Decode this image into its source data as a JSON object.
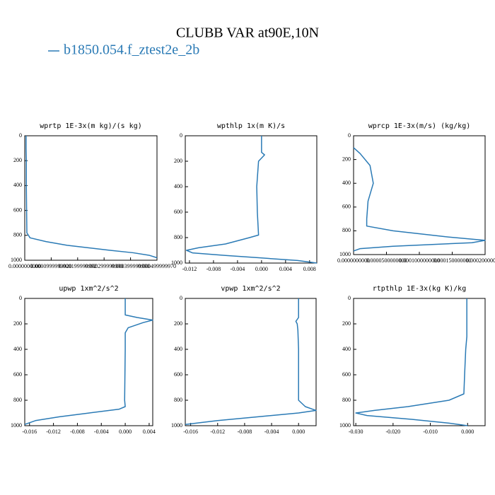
{
  "title": "CLUBB VAR at90E,10N",
  "legend": {
    "name": "b1850.054.f_ztest2e_2b",
    "color": "#2a7ab5"
  },
  "chart_data": [
    {
      "type": "line",
      "title": "wprtp  1E-3x(m kg)/(s kg)",
      "y": [
        0,
        100,
        200,
        400,
        600,
        780,
        820,
        850,
        880,
        900,
        920,
        940,
        960,
        980
      ],
      "series": [
        {
          "color": "#2a7ab5",
          "values": [
            5e-06,
            5e-06,
            6e-06,
            6e-06,
            7e-06,
            8e-06,
            2e-05,
            8e-05,
            0.00016,
            0.00024,
            0.00032,
            0.00041,
            0.00047,
            0.0005
          ]
        }
      ],
      "xlim": [
        0,
        0.0005
      ],
      "xticks": [
        {
          "value": 0,
          "label": "0.0000000000"
        },
        {
          "value": 0.0001,
          "label": "0.0000999999920"
        },
        {
          "value": 0.0002,
          "label": "0.000199999992"
        },
        {
          "value": 0.0003,
          "label": "0.000299999990"
        },
        {
          "value": 0.0004,
          "label": "0.000399999990"
        },
        {
          "value": 0.0005,
          "label": "0.000499999970"
        }
      ],
      "ylim": [
        1000,
        0
      ],
      "yticks": [
        0,
        200,
        400,
        600,
        800,
        1000
      ]
    },
    {
      "type": "line",
      "title": "wpthlp  1x(m K)/s",
      "y": [
        0,
        130,
        150,
        200,
        400,
        600,
        780,
        800,
        850,
        880,
        900,
        920,
        940,
        960,
        980,
        1000
      ],
      "series": [
        {
          "color": "#2a7ab5",
          "values": [
            0,
            0,
            0.0005,
            -0.0005,
            -0.0008,
            -0.0007,
            -0.0005,
            -0.002,
            -0.006,
            -0.0105,
            -0.0125,
            -0.0115,
            -0.006,
            0,
            0.006,
            0.0092
          ]
        }
      ],
      "xlim": [
        -0.0127,
        0.0092
      ],
      "xticks": [
        -0.012,
        -0.008,
        -0.004,
        {
          "value": 0,
          "label": "0.000"
        },
        0.004,
        0.008
      ],
      "ylim": [
        1000,
        0
      ],
      "yticks": [
        0,
        200,
        400,
        600,
        800,
        1000
      ]
    },
    {
      "type": "line",
      "title": "wprcp  1E-3x(m/s) (kg/kg)",
      "y": [
        100,
        150,
        250,
        400,
        550,
        700,
        760,
        800,
        850,
        880,
        900,
        930,
        950,
        970
      ],
      "series": [
        {
          "color": "#2a7ab5",
          "values": [
            0,
            1e-05,
            2.5e-05,
            3e-05,
            2.2e-05,
            2e-05,
            2e-05,
            6e-05,
            0.00014,
            0.0002,
            0.00018,
            6e-05,
            1e-05,
            0
          ]
        }
      ],
      "xlim": [
        0,
        0.0002
      ],
      "xticks": [
        {
          "value": 0,
          "label": "0.0000000000"
        },
        {
          "value": 5e-05,
          "label": "0.0000500000000"
        },
        {
          "value": 0.0001,
          "label": "0.0001000000000"
        },
        {
          "value": 0.00015,
          "label": "0.000150000000"
        },
        {
          "value": 0.0002,
          "label": "0.000200000000"
        }
      ],
      "ylim": [
        1000,
        0
      ],
      "yticks": [
        0,
        200,
        400,
        600,
        800,
        1000
      ]
    },
    {
      "type": "line",
      "title": "upwp  1xm^2/s^2",
      "y": [
        0,
        130,
        150,
        170,
        190,
        230,
        270,
        400,
        800,
        850,
        870,
        900,
        930,
        960,
        990
      ],
      "series": [
        {
          "color": "#2a7ab5",
          "values": [
            0,
            0,
            0.002,
            0.0046,
            0.003,
            0.0005,
            0,
            0,
            -0.0001,
            0,
            -0.001,
            -0.006,
            -0.011,
            -0.015,
            -0.0168
          ]
        }
      ],
      "xlim": [
        -0.0168,
        0.0046
      ],
      "xticks": [
        -0.016,
        -0.012,
        -0.008,
        -0.004,
        {
          "value": 0,
          "label": "0.000"
        },
        0.004
      ],
      "ylim": [
        1000,
        0
      ],
      "yticks": [
        0,
        200,
        400,
        600,
        800,
        1000
      ]
    },
    {
      "type": "line",
      "title": "vpwp  1xm^2/s^2",
      "y": [
        0,
        150,
        180,
        200,
        250,
        400,
        800,
        850,
        880,
        900,
        930,
        960,
        990
      ],
      "series": [
        {
          "color": "#2a7ab5",
          "values": [
            0,
            0,
            -0.0004,
            -0.0002,
            -0.0001,
            0,
            0,
            0.001,
            0.0026,
            0,
            -0.006,
            -0.012,
            -0.0168
          ]
        }
      ],
      "xlim": [
        -0.0168,
        0.0026
      ],
      "xticks": [
        -0.016,
        -0.012,
        -0.008,
        -0.004,
        {
          "value": 0,
          "label": "0.000"
        }
      ],
      "ylim": [
        1000,
        0
      ],
      "yticks": [
        0,
        200,
        400,
        600,
        800,
        1000
      ]
    },
    {
      "type": "line",
      "title": "rtpthlp  1E-3x(kg K)/kg",
      "y": [
        0,
        300,
        400,
        600,
        750,
        800,
        850,
        880,
        900,
        920,
        950,
        980,
        1000
      ],
      "series": [
        {
          "color": "#2a7ab5",
          "values": [
            -0.0002,
            -0.0002,
            -0.0005,
            -0.0008,
            -0.001,
            -0.005,
            -0.016,
            -0.025,
            -0.03,
            -0.027,
            -0.015,
            -0.005,
            0
          ]
        }
      ],
      "xlim": [
        -0.0306,
        0.0047
      ],
      "xticks": [
        {
          "value": -0.03,
          "label": "-0.030"
        },
        {
          "value": -0.02,
          "label": "-0.020"
        },
        {
          "value": -0.01,
          "label": "-0.010"
        },
        {
          "value": 0,
          "label": "0.000"
        }
      ],
      "ylim": [
        1000,
        0
      ],
      "yticks": [
        0,
        200,
        400,
        600,
        800,
        1000
      ]
    }
  ]
}
